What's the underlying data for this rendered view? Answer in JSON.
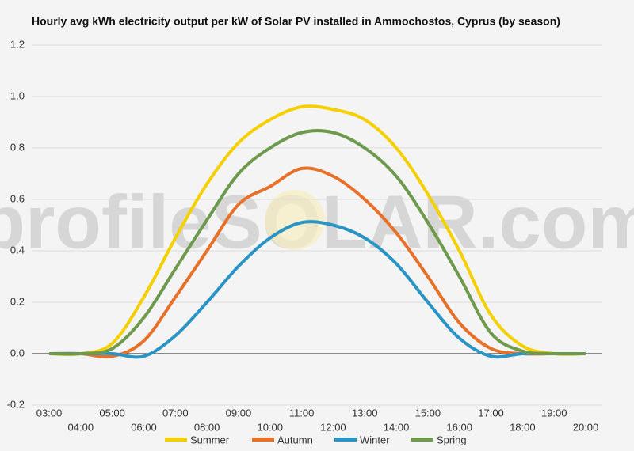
{
  "chart_data": {
    "type": "line",
    "title": "Hourly avg kWh electricity output per kW of Solar PV installed in Ammochostos, Cyprus (by season)",
    "watermark": "profileSOLAR.com",
    "categories": [
      "03:00",
      "04:00",
      "05:00",
      "06:00",
      "07:00",
      "08:00",
      "09:00",
      "10:00",
      "11:00",
      "12:00",
      "13:00",
      "14:00",
      "15:00",
      "16:00",
      "17:00",
      "18:00",
      "19:00",
      "20:00"
    ],
    "series": [
      {
        "name": "Summer",
        "color": "#f5d000",
        "values": [
          0,
          0,
          0.04,
          0.22,
          0.45,
          0.66,
          0.82,
          0.91,
          0.96,
          0.95,
          0.91,
          0.8,
          0.62,
          0.4,
          0.15,
          0.03,
          0,
          0
        ]
      },
      {
        "name": "Autumn",
        "color": "#e8712a",
        "values": [
          0,
          0,
          -0.01,
          0.05,
          0.22,
          0.4,
          0.58,
          0.65,
          0.72,
          0.69,
          0.6,
          0.47,
          0.3,
          0.12,
          0.02,
          0,
          0,
          0
        ]
      },
      {
        "name": "Winter",
        "color": "#2a94c4",
        "values": [
          0,
          0,
          0,
          -0.01,
          0.07,
          0.2,
          0.34,
          0.45,
          0.51,
          0.5,
          0.45,
          0.35,
          0.2,
          0.06,
          -0.01,
          0,
          0,
          0
        ]
      },
      {
        "name": "Spring",
        "color": "#6e9a4e",
        "values": [
          0,
          0,
          0.02,
          0.14,
          0.33,
          0.52,
          0.7,
          0.8,
          0.86,
          0.86,
          0.8,
          0.69,
          0.51,
          0.3,
          0.08,
          0.01,
          0,
          0
        ]
      }
    ],
    "ylim": [
      -0.2,
      1.2
    ],
    "yticks": [
      -0.2,
      {
        "value": 0,
        "label": "0.0"
      },
      0.2,
      0.4,
      0.6,
      0.8,
      {
        "value": 1,
        "label": "1.0"
      },
      1.2
    ],
    "grid": true
  }
}
